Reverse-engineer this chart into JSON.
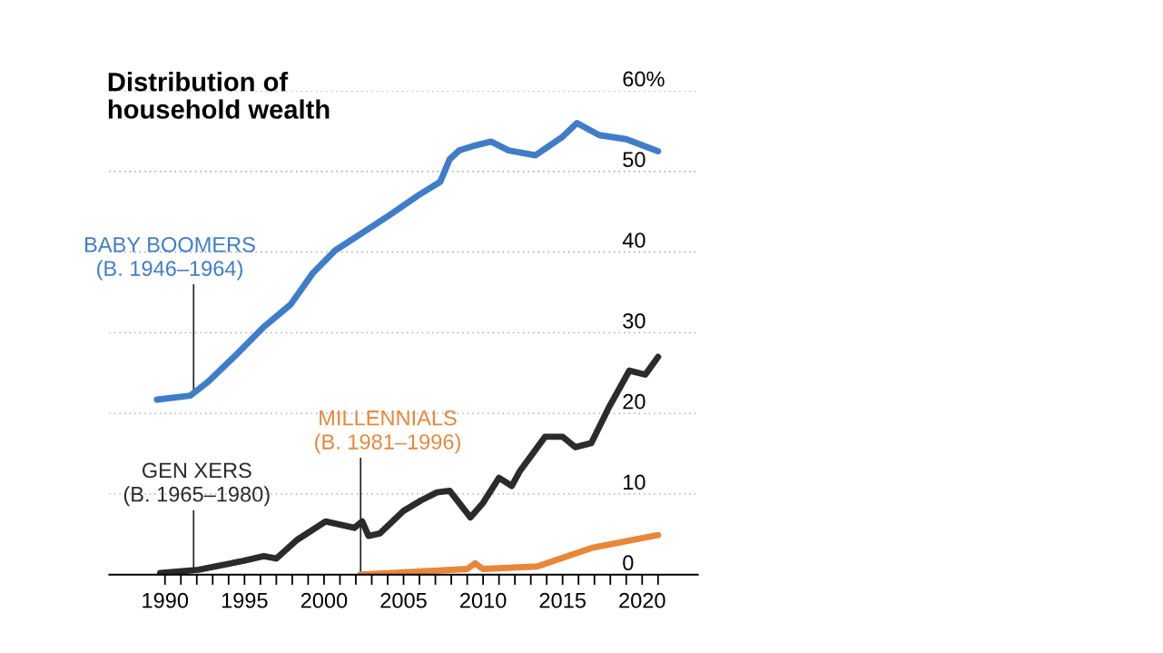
{
  "chart_data": {
    "type": "line",
    "title": "Distribution of\nhousehold wealth",
    "series": [
      {
        "name": "BABY BOOMERS\n(B. 1946–1964)",
        "color": "#3f7dc8",
        "x": [
          1989.5,
          1991.6,
          1992.7,
          1994.5,
          1996.2,
          1997.9,
          1999.3,
          2000.7,
          2002.5,
          2004.2,
          2005.9,
          2007.3,
          2007.9,
          2008.5,
          2009.3,
          2010.5,
          2011.6,
          2013.3,
          2015.0,
          2015.9,
          2017.3,
          2019.0,
          2021.0
        ],
        "values": [
          21.7,
          22.2,
          23.9,
          27.3,
          30.7,
          33.5,
          37.4,
          40.2,
          42.5,
          44.7,
          47.0,
          48.7,
          51.5,
          52.6,
          53.1,
          53.7,
          52.6,
          52.0,
          54.3,
          56.0,
          54.5,
          54.0,
          52.5
        ]
      },
      {
        "name": "GEN XERS\n(B. 1965–1980)",
        "color": "#2b2b2b",
        "x": [
          1989.7,
          1992.1,
          1994.9,
          1996.2,
          1997.0,
          1998.3,
          2000.1,
          2001.9,
          2002.4,
          2002.8,
          2003.5,
          2005.0,
          2006.1,
          2007.1,
          2007.9,
          2009.2,
          2010.0,
          2011.0,
          2011.8,
          2012.3,
          2013.9,
          2015.0,
          2015.8,
          2016.8,
          2017.9,
          2019.2,
          2020.2,
          2021.0
        ],
        "values": [
          0.2,
          0.6,
          1.7,
          2.3,
          2.0,
          4.3,
          6.6,
          5.8,
          6.6,
          4.8,
          5.1,
          7.9,
          9.2,
          10.2,
          10.4,
          7.1,
          8.9,
          12.0,
          11.0,
          12.8,
          17.1,
          17.1,
          15.8,
          16.3,
          20.7,
          25.3,
          24.8,
          27.0
        ]
      },
      {
        "name": "MILLENNIALS\n(B. 1981–1996)",
        "color": "#e8873a",
        "x": [
          2002.3,
          2009.0,
          2009.5,
          2010.0,
          2013.4,
          2016.8,
          2021.0
        ],
        "values": [
          0.0,
          0.7,
          1.4,
          0.7,
          1.0,
          3.3,
          4.9
        ]
      }
    ],
    "xlim": [
      1986.5,
      2023.5
    ],
    "xticks": [
      {
        "value": 1990,
        "label": "1990"
      },
      {
        "value": 1991,
        "label": null
      },
      {
        "value": 1992,
        "label": null
      },
      {
        "value": 1993,
        "label": null
      },
      {
        "value": 1994,
        "label": null
      },
      {
        "value": 1995,
        "label": "1995"
      },
      {
        "value": 1996,
        "label": null
      },
      {
        "value": 1997,
        "label": null
      },
      {
        "value": 1998,
        "label": null
      },
      {
        "value": 1999,
        "label": null
      },
      {
        "value": 2000,
        "label": "2000"
      },
      {
        "value": 2001,
        "label": null
      },
      {
        "value": 2002,
        "label": null
      },
      {
        "value": 2003,
        "label": null
      },
      {
        "value": 2004,
        "label": null
      },
      {
        "value": 2005,
        "label": "2005"
      },
      {
        "value": 2006,
        "label": null
      },
      {
        "value": 2007,
        "label": null
      },
      {
        "value": 2008,
        "label": null
      },
      {
        "value": 2009,
        "label": null
      },
      {
        "value": 2010,
        "label": "2010"
      },
      {
        "value": 2011,
        "label": null
      },
      {
        "value": 2012,
        "label": null
      },
      {
        "value": 2013,
        "label": null
      },
      {
        "value": 2014,
        "label": null
      },
      {
        "value": 2015,
        "label": "2015"
      },
      {
        "value": 2016,
        "label": null
      },
      {
        "value": 2017,
        "label": null
      },
      {
        "value": 2018,
        "label": null
      },
      {
        "value": 2019,
        "label": null
      },
      {
        "value": 2020,
        "label": "2020"
      },
      {
        "value": 2021,
        "label": null
      }
    ],
    "ylim": [
      0,
      60
    ],
    "yticks": [
      0,
      10,
      20,
      30,
      40,
      50,
      {
        "value": 60,
        "label": "60%"
      }
    ],
    "grid": "y",
    "legend": false,
    "line_style": "solid",
    "marker": "none"
  }
}
